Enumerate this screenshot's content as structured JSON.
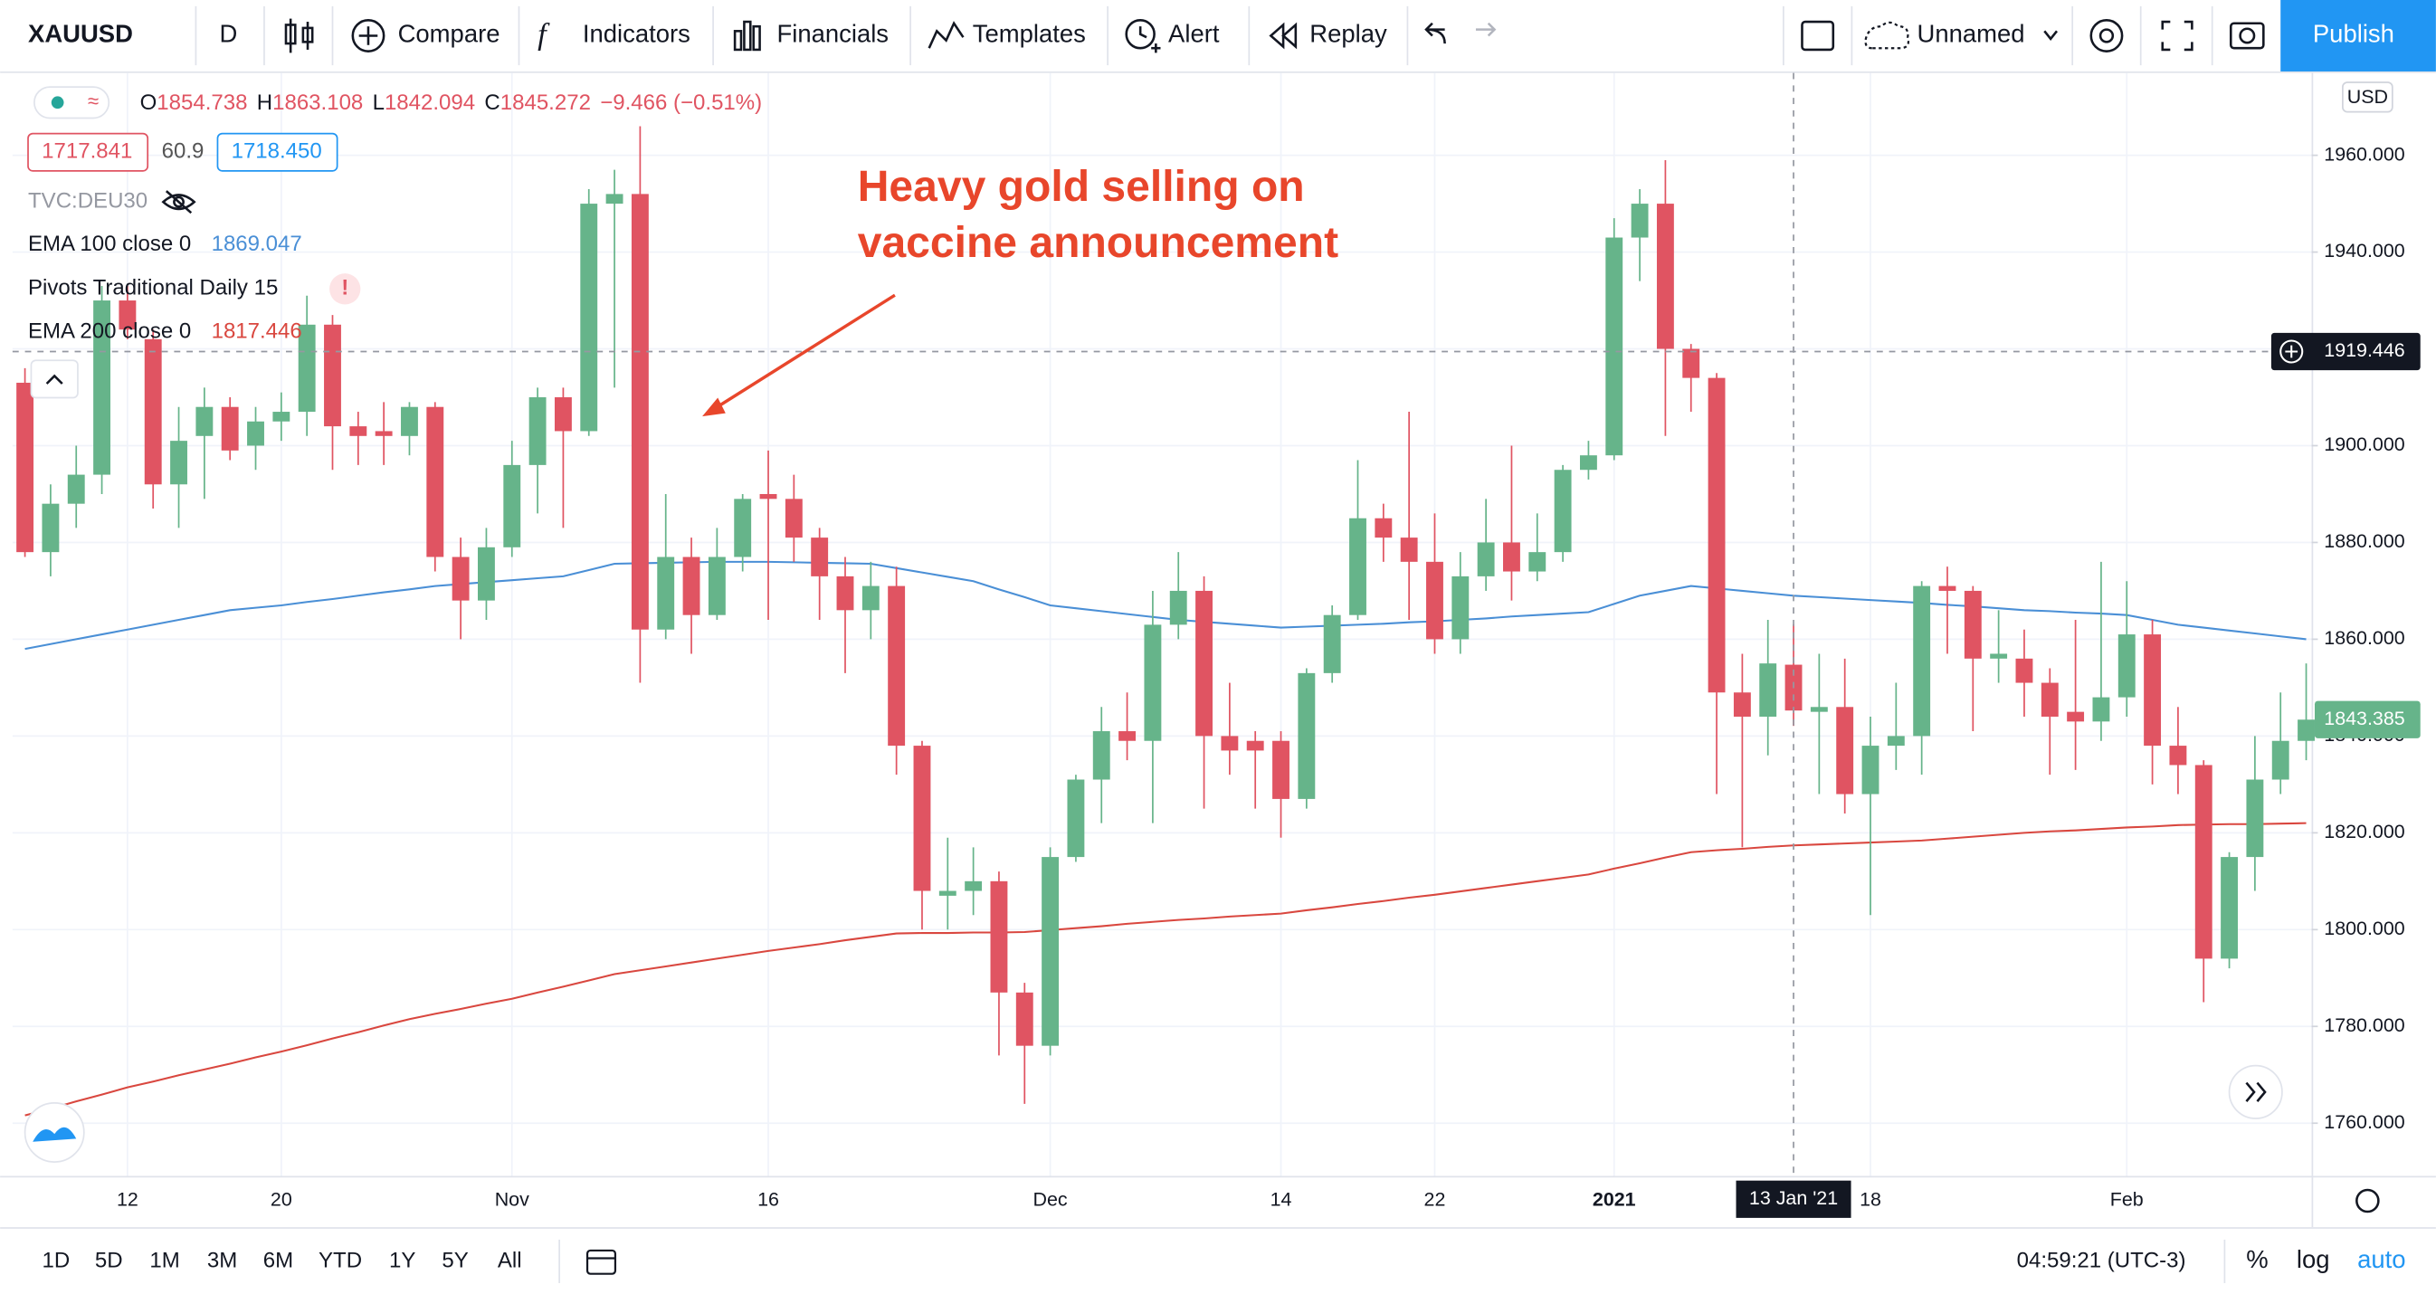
{
  "toolbar": {
    "symbol": "XAUUSD",
    "interval": "D",
    "compare": "Compare",
    "indicators": "Indicators",
    "financials": "Financials",
    "templates": "Templates",
    "alert": "Alert",
    "replay": "Replay",
    "layout_name": "Unnamed",
    "publish": "Publish"
  },
  "legend": {
    "ohlc_letters": [
      "O",
      "H",
      "L",
      "C"
    ],
    "ohlc": [
      1854.738,
      1863.108,
      1842.094,
      1845.272
    ],
    "change": "−9.466 (−0.51%)",
    "bid": "1717.841",
    "spread": "60.9",
    "ask": "1718.450",
    "compare_symbol": "TVC:DEU30",
    "pivots": "Pivots Traditional Daily 15",
    "pivots_warning": "!"
  },
  "annotation": [
    "Heavy gold selling on",
    "vaccine announcement"
  ],
  "chart_data": {
    "type": "candlestick",
    "currency": "USD",
    "categories": [
      null,
      null,
      null,
      null,
      "12",
      null,
      null,
      null,
      null,
      null,
      "20",
      null,
      null,
      null,
      null,
      null,
      null,
      null,
      null,
      "Nov",
      null,
      null,
      null,
      null,
      null,
      null,
      null,
      null,
      null,
      "16",
      null,
      null,
      null,
      null,
      null,
      null,
      null,
      null,
      null,
      null,
      "Dec",
      null,
      null,
      null,
      null,
      null,
      null,
      null,
      null,
      "14",
      null,
      null,
      null,
      null,
      null,
      "22",
      null,
      null,
      null,
      null,
      null,
      null,
      "2021",
      null,
      null,
      null,
      null,
      null,
      null,
      null,
      null,
      null,
      "18",
      null,
      null,
      null,
      null,
      null,
      null,
      null,
      null,
      null,
      "Feb",
      null,
      null,
      null,
      null,
      null,
      null,
      null
    ],
    "open": [
      1913,
      1878,
      1888,
      1894,
      1930,
      1922,
      1892,
      1902,
      1908,
      1900,
      1905,
      1907,
      1925,
      1904,
      1903,
      1902,
      1908,
      1877,
      1868,
      1879,
      1896,
      1910,
      1903,
      1950,
      1952,
      1862,
      1877,
      1865,
      1877,
      1890,
      1889,
      1881,
      1873,
      1866,
      1871,
      1838,
      1807,
      1808,
      1810,
      1787,
      1776,
      1815,
      1831,
      1841,
      1839,
      1863,
      1870,
      1840,
      1839,
      1839,
      1827,
      1853,
      1865,
      1885,
      1881,
      1876,
      1860,
      1873,
      1880,
      1874,
      1878,
      1895,
      1898,
      1943,
      1950,
      1920,
      1914,
      1849,
      1844,
      1854.738,
      1845,
      1846,
      1828,
      1838,
      1840,
      1871,
      1870,
      1856,
      1856,
      1851,
      1845,
      1843,
      1848,
      1861,
      1838,
      1834,
      1794,
      1815,
      1831,
      1839
    ],
    "high": [
      1916,
      1892,
      1900,
      1933,
      1933,
      1924,
      1908,
      1912,
      1910,
      1908,
      1911,
      1931,
      1927,
      1907,
      1909,
      1909,
      1909,
      1881,
      1883,
      1901,
      1912,
      1912,
      1953,
      1957,
      1966,
      1890,
      1881,
      1883,
      1890,
      1899,
      1894,
      1883,
      1877,
      1876,
      1875,
      1839,
      1819,
      1817,
      1812,
      1789,
      1817,
      1832,
      1846,
      1849,
      1870,
      1878,
      1873,
      1851,
      1841,
      1841,
      1854,
      1867,
      1897,
      1888,
      1907,
      1886,
      1878,
      1889,
      1900,
      1886,
      1896,
      1901,
      1947,
      1953,
      1959,
      1921,
      1915,
      1857,
      1864,
      1863.108,
      1857,
      1856,
      1844,
      1851,
      1872,
      1875,
      1871,
      1866,
      1862,
      1854,
      1864,
      1876,
      1872,
      1864,
      1846,
      1835,
      1816,
      1840,
      1849,
      1855
    ],
    "low": [
      1877,
      1873,
      1883,
      1890,
      1922,
      1887,
      1883,
      1889,
      1897,
      1895,
      1901,
      1902,
      1895,
      1896,
      1896,
      1898,
      1874,
      1860,
      1864,
      1877,
      1886,
      1883,
      1902,
      1912,
      1851,
      1860,
      1857,
      1864,
      1874,
      1864,
      1876,
      1864,
      1853,
      1860,
      1832,
      1800,
      1800,
      1803,
      1774,
      1764,
      1774,
      1814,
      1822,
      1835,
      1822,
      1860,
      1825,
      1832,
      1825,
      1819,
      1825,
      1851,
      1864,
      1876,
      1864,
      1857,
      1857,
      1870,
      1868,
      1872,
      1876,
      1893,
      1897,
      1934,
      1902,
      1907,
      1828,
      1817,
      1836,
      1842.094,
      1828,
      1824,
      1803,
      1833,
      1832,
      1857,
      1841,
      1851,
      1844,
      1832,
      1833,
      1839,
      1844,
      1830,
      1828,
      1785,
      1792,
      1808,
      1828,
      1835
    ],
    "close": [
      1878,
      1888,
      1894,
      1930,
      1924,
      1892,
      1901,
      1908,
      1899,
      1905,
      1907,
      1925,
      1904,
      1902,
      1902,
      1908,
      1877,
      1868,
      1879,
      1896,
      1910,
      1903,
      1950,
      1952,
      1862,
      1877,
      1865,
      1877,
      1889,
      1889,
      1881,
      1873,
      1866,
      1871,
      1838,
      1808,
      1808,
      1810,
      1787,
      1776,
      1815,
      1831,
      1841,
      1839,
      1863,
      1870,
      1840,
      1837,
      1837,
      1827,
      1853,
      1865,
      1885,
      1881,
      1876,
      1860,
      1873,
      1880,
      1874,
      1878,
      1895,
      1898,
      1943,
      1950,
      1920,
      1914,
      1849,
      1844,
      1855,
      1845.272,
      1846,
      1828,
      1838,
      1840,
      1871,
      1870,
      1856,
      1857,
      1851,
      1844,
      1843,
      1848,
      1861,
      1838,
      1834,
      1794,
      1815,
      1831,
      1839,
      1843.385
    ],
    "up_color": "#66b48a",
    "down_color": "#e05462",
    "series": [
      {
        "name": "EMA 100 close 0",
        "color": "#4a8fd6",
        "legend_value": 1869.047,
        "values": [
          1858,
          1859,
          1860,
          1861,
          1862,
          1863,
          1864,
          1865,
          1866,
          1866.5,
          1867,
          1867.7,
          1868.3,
          1869,
          1869.7,
          1870.3,
          1871,
          1871.4,
          1871.8,
          1872.2,
          1872.6,
          1873,
          1874.3,
          1875.6,
          1875.7,
          1875.8,
          1875.9,
          1876,
          1876,
          1876,
          1875.9,
          1875.8,
          1875.7,
          1875.6,
          1874.7,
          1873.8,
          1872.9,
          1872,
          1870.3,
          1868.7,
          1867,
          1866.4,
          1865.8,
          1865.2,
          1864.6,
          1864,
          1863.6,
          1863.2,
          1862.8,
          1862.4,
          1862.6,
          1862.8,
          1863,
          1863.2,
          1863.5,
          1863.7,
          1864,
          1864.3,
          1864.7,
          1865,
          1865.3,
          1865.6,
          1867.3,
          1869,
          1870,
          1871,
          1870.5,
          1870,
          1869.5,
          1869,
          1868.7,
          1868.4,
          1868.1,
          1867.8,
          1867.5,
          1867.1,
          1866.8,
          1866.4,
          1866,
          1865.8,
          1865.5,
          1865.3,
          1865,
          1864,
          1863,
          1862.4,
          1861.8,
          1861.2,
          1860.6,
          1860
        ]
      },
      {
        "name": "EMA 200 close 0",
        "color": "#d9473f",
        "legend_value": 1817.446,
        "values": [
          1761.6,
          1763,
          1764.5,
          1765.9,
          1767.4,
          1768.6,
          1769.9,
          1771.1,
          1772.3,
          1773.6,
          1774.8,
          1776.1,
          1777.5,
          1778.8,
          1780.2,
          1781.5,
          1782.6,
          1783.6,
          1784.7,
          1785.7,
          1787,
          1788.2,
          1789.5,
          1790.8,
          1791.6,
          1792.4,
          1793.2,
          1794,
          1794.8,
          1795.6,
          1796.3,
          1797,
          1797.8,
          1798.5,
          1799.2,
          1799.3,
          1799.3,
          1799.4,
          1799.4,
          1799.5,
          1799.9,
          1800.3,
          1800.7,
          1801.2,
          1801.6,
          1802,
          1802.3,
          1802.7,
          1803,
          1803.3,
          1804,
          1804.6,
          1805.3,
          1805.9,
          1806.6,
          1807.2,
          1807.9,
          1808.6,
          1809.3,
          1810,
          1810.7,
          1811.4,
          1812.6,
          1813.7,
          1814.9,
          1816,
          1816.4,
          1816.7,
          1817.1,
          1817.4,
          1817.6,
          1817.8,
          1818,
          1818.2,
          1818.4,
          1818.8,
          1819.2,
          1819.6,
          1820,
          1820.3,
          1820.5,
          1820.8,
          1821.1,
          1821.3,
          1821.6,
          1821.7,
          1821.8,
          1821.8,
          1821.9,
          1822
        ]
      }
    ],
    "ylim": [
      1749.1,
      1977
    ],
    "yticks": [
      {
        "value": 1760,
        "label": "1760.000"
      },
      {
        "value": 1780,
        "label": "1780.000"
      },
      {
        "value": 1800,
        "label": "1800.000"
      },
      {
        "value": 1820,
        "label": "1820.000"
      },
      {
        "value": 1840,
        "label": "1840.000"
      },
      {
        "value": 1860,
        "label": "1860.000"
      },
      {
        "value": 1880,
        "label": "1880.000"
      },
      {
        "value": 1900,
        "label": "1900.000"
      },
      {
        "value": 1920,
        "label": "1920.000"
      },
      {
        "value": 1940,
        "label": "1940.000"
      },
      {
        "value": 1960,
        "label": "1960.000"
      }
    ],
    "grid": true,
    "crosshair": {
      "x_label": "13 Jan '21",
      "y": 1919.446
    }
  },
  "bottom_bar": {
    "ranges": [
      "1D",
      "5D",
      "1M",
      "3M",
      "6M",
      "YTD",
      "1Y",
      "5Y",
      "All"
    ],
    "time": "04:59:21 (UTC-3)",
    "percent": "%",
    "log": "log",
    "auto": "auto"
  }
}
